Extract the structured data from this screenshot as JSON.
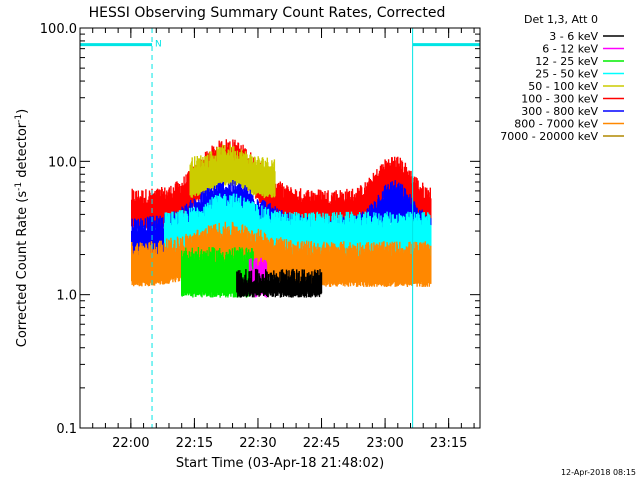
{
  "chart_data": {
    "type": "line",
    "title": "HESSI Observing Summary Count Rates, Corrected",
    "xlabel": "Start Time (03-Apr-18 21:48:02)",
    "ylabel": "Corrected Count Rate (s",
    "ylabel_sup": "-1",
    "ylabel_mid": " detector",
    "ylabel_end": ")",
    "yscale": "log",
    "ylim": [
      0.1,
      100
    ],
    "y_ticks": [
      {
        "value": 0.1,
        "label": "0.1"
      },
      {
        "value": 1,
        "label": "1.0"
      },
      {
        "value": 10,
        "label": "10.0"
      },
      {
        "value": 100,
        "label": "100.0"
      }
    ],
    "x_unit": "minutes since 21:48:02",
    "xlim": [
      0,
      94.4
    ],
    "x_ticks": [
      {
        "value": 12,
        "label": "22:00"
      },
      {
        "value": 27,
        "label": "22:15"
      },
      {
        "value": 42,
        "label": "22:30"
      },
      {
        "value": 57,
        "label": "22:45"
      },
      {
        "value": 72,
        "label": "23:00"
      },
      {
        "value": 87,
        "label": "23:15"
      }
    ],
    "legend_header": "Det 1,3, Att 0",
    "legend_position": "top-right",
    "series": [
      {
        "name": "3 - 6 keV",
        "color": "#000000"
      },
      {
        "name": "6 - 12 keV",
        "color": "#ff00ff"
      },
      {
        "name": "12 - 25 keV",
        "color": "#00ee00"
      },
      {
        "name": "25 - 50 keV",
        "color": "#00ffff"
      },
      {
        "name": "50 - 100 keV",
        "color": "#cccc00"
      },
      {
        "name": "100 - 300 keV",
        "color": "#ff0000"
      },
      {
        "name": "300 - 800 keV",
        "color": "#0000ff"
      },
      {
        "name": "800 - 7000 keV",
        "color": "#ff8800"
      },
      {
        "name": "7000 - 20000 keV",
        "color": "#b08800"
      }
    ],
    "bands": [
      {
        "name": "100 - 300 keV",
        "color": "#ff0000",
        "start": 12.2,
        "end": 82.8,
        "lo": 3.2,
        "hi": 5.2,
        "peaks": [
          {
            "center": 35,
            "width": 8,
            "factor": 2.4
          },
          {
            "center": 74,
            "width": 5,
            "factor": 1.8
          }
        ]
      },
      {
        "name": "50 - 100 keV",
        "color": "#cccc00",
        "start": 26,
        "end": 46,
        "lo": 5.5,
        "hi": 9,
        "peaks": [
          {
            "center": 35,
            "width": 5,
            "factor": 1.25
          }
        ]
      },
      {
        "name": "300 - 800 keV",
        "color": "#0000ff",
        "start": 12.2,
        "end": 82.8,
        "lo": 1.8,
        "hi": 3.2,
        "peaks": [
          {
            "center": 35,
            "width": 9,
            "factor": 1.9
          },
          {
            "center": 74,
            "width": 5,
            "factor": 1.9
          }
        ]
      },
      {
        "name": "25 - 50 keV",
        "color": "#00ffff",
        "start": 20,
        "end": 82.8,
        "lo": 1.5,
        "hi": 3.5,
        "peaks": [
          {
            "center": 35,
            "width": 7,
            "factor": 1.4
          }
        ]
      },
      {
        "name": "800 - 7000 keV",
        "color": "#ff8800",
        "start": 12.2,
        "end": 82.8,
        "lo": 1.2,
        "hi": 2.1,
        "peaks": [
          {
            "center": 35,
            "width": 10,
            "factor": 1.4
          }
        ]
      },
      {
        "name": "12 - 25 keV",
        "color": "#00ee00",
        "start": 24,
        "end": 41,
        "lo": 1.0,
        "hi": 1.9,
        "peaks": []
      },
      {
        "name": "6 - 12 keV",
        "color": "#ff00ff",
        "start": 40,
        "end": 44,
        "lo": 1.0,
        "hi": 1.6,
        "peaks": []
      },
      {
        "name": "3 - 6 keV",
        "color": "#000000",
        "start": 37,
        "end": 57,
        "lo": 1.0,
        "hi": 1.3,
        "peaks": []
      }
    ],
    "attenuator_segments": [
      {
        "label": "N",
        "start": 0,
        "end": 17,
        "level": 75
      },
      {
        "label": "",
        "start": 78.5,
        "end": 94.4,
        "level": 75
      }
    ],
    "vertical_markers": [
      {
        "x": 0,
        "style": "solid"
      },
      {
        "x": 17,
        "style": "dashed"
      },
      {
        "x": 78.5,
        "style": "solid"
      },
      {
        "x": 94.4,
        "style": "dashed"
      }
    ],
    "marker_color": "#00e5e5"
  },
  "footer": {
    "timestamp": "12-Apr-2018 08:15"
  }
}
